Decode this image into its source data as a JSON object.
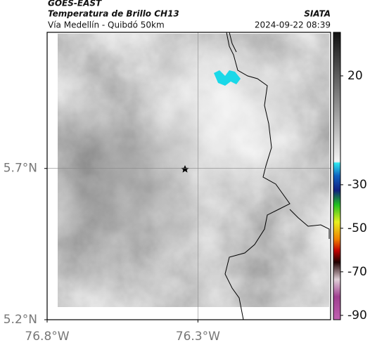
{
  "header": {
    "source": "GOES-EAST",
    "title": "Temperatura de Brillo CH13",
    "brand": "SIATA",
    "route": "Vía Medellín - Quibdó 50km",
    "timestamp": "2024-09-22 08:39"
  },
  "map": {
    "xlim": [
      -76.8,
      -75.86
    ],
    "ylim": [
      5.2,
      6.15
    ],
    "xticks": [
      {
        "value": -76.8,
        "label": "76.8°W"
      },
      {
        "value": -76.3,
        "label": "76.3°W"
      }
    ],
    "yticks": [
      {
        "value": 5.2,
        "label": "5.2°N"
      },
      {
        "value": 5.7,
        "label": "5.7°N"
      }
    ]
  },
  "colorbar": {
    "lim": [
      -92,
      40
    ],
    "ticks": [
      20,
      -30,
      -50,
      -70,
      -90
    ]
  }
}
